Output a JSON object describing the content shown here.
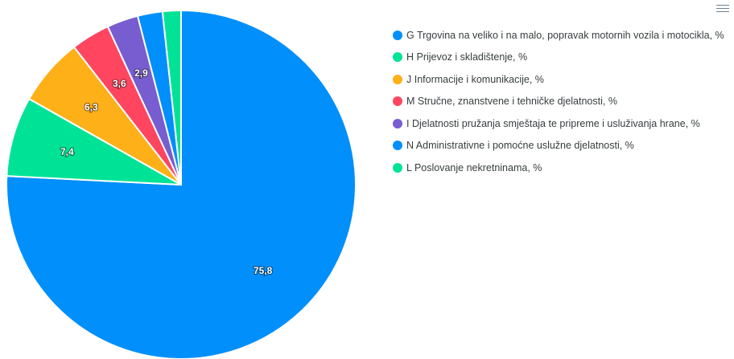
{
  "chart_data": {
    "type": "pie",
    "categories": [
      "G Trgovina na veliko i na malo, popravak motornih vozila i motocikla, %",
      "H Prijevoz i skladištenje, %",
      "J Informacije i komunikacije, %",
      "M Stručne, znanstvene i tehničke djelatnosti, %",
      "I Djelatnosti pružanja smještaja te pripreme i usluživanja hrane, %",
      "N Administrativne i pomoćne uslužne djelatnosti, %",
      "L Poslovanje nekretninama, %"
    ],
    "values": [
      75.8,
      7.4,
      6.3,
      3.6,
      2.9,
      2.3,
      1.7
    ],
    "data_labels": [
      "75,8",
      "7,4",
      "6,3",
      "3,6",
      "2,9",
      "",
      ""
    ],
    "colors": [
      "#008ffb",
      "#00e396",
      "#feb019",
      "#ff4560",
      "#775dd0",
      "#008ffb",
      "#00e396"
    ],
    "legend_position": "right"
  },
  "toolbar": {
    "menu_icon": "hamburger-menu-icon"
  }
}
